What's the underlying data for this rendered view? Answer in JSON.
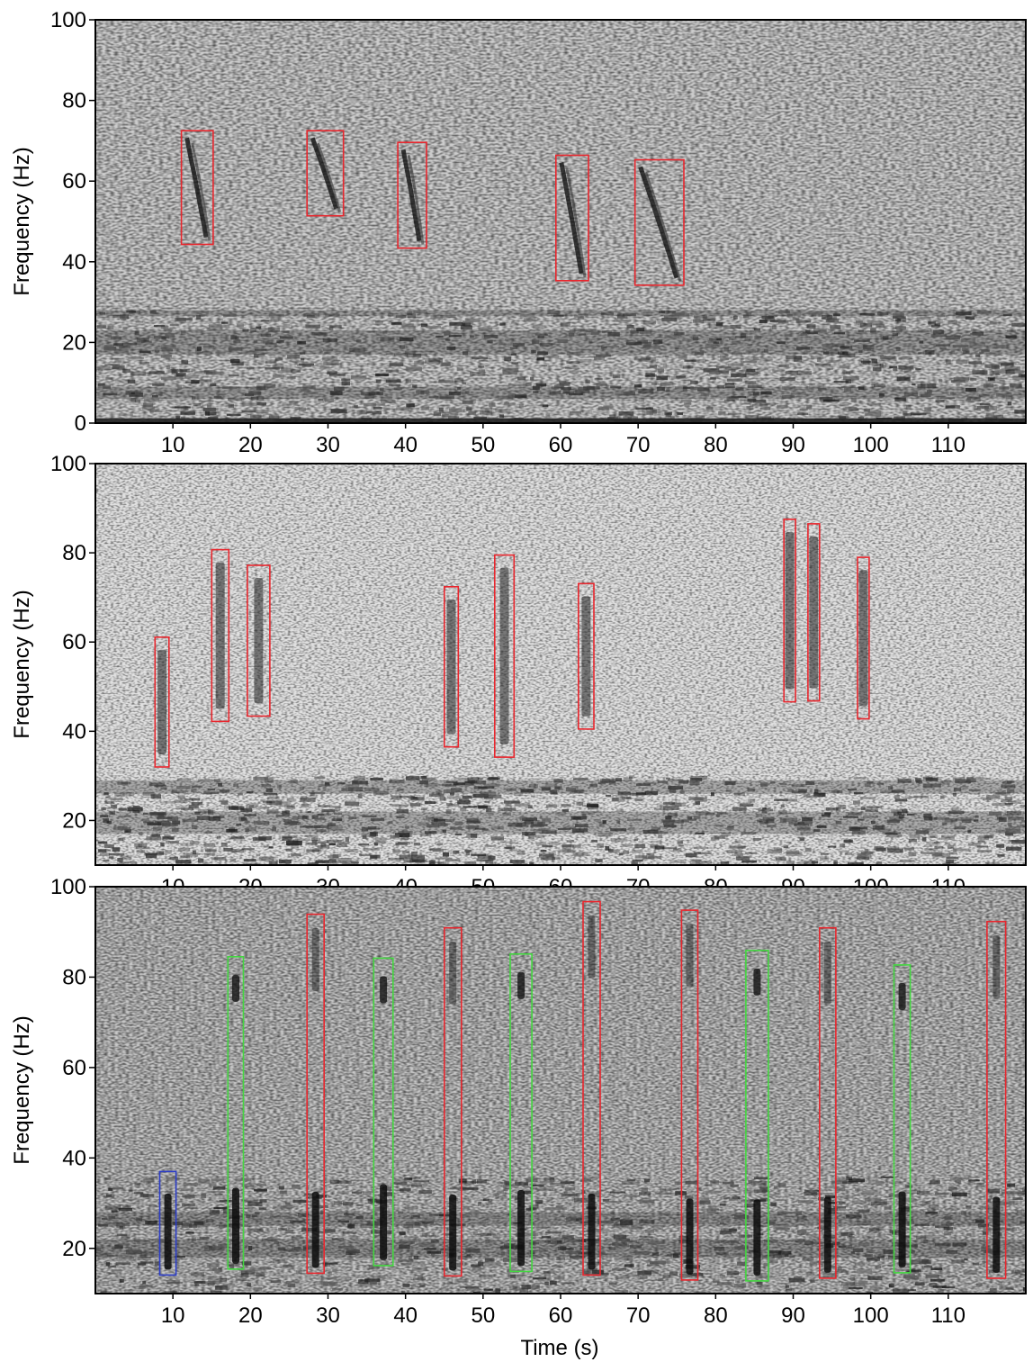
{
  "chart_data": [
    {
      "type": "heatmap",
      "panel": "top",
      "xlabel": "",
      "ylabel": "Frequency (Hz)",
      "xlim": [
        0,
        120
      ],
      "ylim": [
        0,
        100
      ],
      "xticks": [
        "10",
        "20",
        "30",
        "40",
        "50",
        "60",
        "70",
        "80",
        "90",
        "100",
        "110"
      ],
      "yticks": [
        "0",
        "20",
        "40",
        "60",
        "80",
        "100"
      ],
      "boxes": [
        {
          "color": "#e8262d",
          "t0": 11.1,
          "t1": 15.2,
          "f0": 44.3,
          "f1": 72.5
        },
        {
          "color": "#e8262d",
          "t0": 27.3,
          "t1": 32.0,
          "f0": 51.4,
          "f1": 72.5
        },
        {
          "color": "#e8262d",
          "t0": 39.0,
          "t1": 42.7,
          "f0": 43.4,
          "f1": 69.6
        },
        {
          "color": "#e8262d",
          "t0": 59.4,
          "t1": 63.6,
          "f0": 35.3,
          "f1": 66.4
        },
        {
          "color": "#e8262d",
          "t0": 69.6,
          "t1": 75.9,
          "f0": 34.2,
          "f1": 65.3
        }
      ]
    },
    {
      "type": "heatmap",
      "panel": "middle",
      "xlabel": "",
      "ylabel": "Frequency (Hz)",
      "xlim": [
        0,
        120
      ],
      "ylim": [
        10,
        100
      ],
      "xticks": [
        "10",
        "20",
        "30",
        "40",
        "50",
        "60",
        "70",
        "80",
        "90",
        "100",
        "110"
      ],
      "yticks": [
        "20",
        "40",
        "60",
        "80",
        "100"
      ],
      "boxes": [
        {
          "color": "#e8262d",
          "t0": 7.7,
          "t1": 9.5,
          "f0": 32.0,
          "f1": 61.1
        },
        {
          "color": "#e8262d",
          "t0": 15.0,
          "t1": 17.2,
          "f0": 42.2,
          "f1": 80.7
        },
        {
          "color": "#e8262d",
          "t0": 19.6,
          "t1": 22.5,
          "f0": 43.4,
          "f1": 77.2
        },
        {
          "color": "#e8262d",
          "t0": 45.0,
          "t1": 46.8,
          "f0": 36.5,
          "f1": 72.4
        },
        {
          "color": "#e8262d",
          "t0": 51.5,
          "t1": 54.0,
          "f0": 34.2,
          "f1": 79.5
        },
        {
          "color": "#e8262d",
          "t0": 62.3,
          "t1": 64.3,
          "f0": 40.5,
          "f1": 73.1
        },
        {
          "color": "#e8262d",
          "t0": 88.8,
          "t1": 90.3,
          "f0": 46.6,
          "f1": 87.5
        },
        {
          "color": "#e8262d",
          "t0": 91.9,
          "t1": 93.4,
          "f0": 46.8,
          "f1": 86.5
        },
        {
          "color": "#e8262d",
          "t0": 98.3,
          "t1": 99.8,
          "f0": 42.8,
          "f1": 79.0
        }
      ]
    },
    {
      "type": "heatmap",
      "panel": "bottom",
      "xlabel": "Time (s)",
      "ylabel": "Frequency (Hz)",
      "xlim": [
        0,
        120
      ],
      "ylim": [
        10,
        100
      ],
      "xticks": [
        "10",
        "20",
        "30",
        "40",
        "50",
        "60",
        "70",
        "80",
        "90",
        "100",
        "110"
      ],
      "yticks": [
        "20",
        "40",
        "60",
        "80",
        "100"
      ],
      "boxes": [
        {
          "color": "#2b3cc7",
          "t0": 8.3,
          "t1": 10.4,
          "f0": 14.1,
          "f1": 37.0
        },
        {
          "color": "#43d640",
          "t0": 17.1,
          "t1": 19.1,
          "f0": 15.4,
          "f1": 84.5
        },
        {
          "color": "#e8262d",
          "t0": 27.3,
          "t1": 29.5,
          "f0": 14.5,
          "f1": 93.9
        },
        {
          "color": "#43d640",
          "t0": 35.9,
          "t1": 38.4,
          "f0": 16.2,
          "f1": 84.2
        },
        {
          "color": "#e8262d",
          "t0": 45.0,
          "t1": 47.2,
          "f0": 13.9,
          "f1": 90.9
        },
        {
          "color": "#43d640",
          "t0": 53.5,
          "t1": 56.3,
          "f0": 14.9,
          "f1": 85.1
        },
        {
          "color": "#e8262d",
          "t0": 62.9,
          "t1": 65.1,
          "f0": 14.1,
          "f1": 96.7
        },
        {
          "color": "#e8262d",
          "t0": 75.6,
          "t1": 77.7,
          "f0": 13.0,
          "f1": 94.8
        },
        {
          "color": "#43d640",
          "t0": 83.9,
          "t1": 86.8,
          "f0": 12.8,
          "f1": 85.9
        },
        {
          "color": "#e8262d",
          "t0": 93.4,
          "t1": 95.5,
          "f0": 13.4,
          "f1": 90.9
        },
        {
          "color": "#43d640",
          "t0": 103.0,
          "t1": 105.1,
          "f0": 14.6,
          "f1": 82.7
        },
        {
          "color": "#e8262d",
          "t0": 115.0,
          "t1": 117.4,
          "f0": 13.4,
          "f1": 92.3
        }
      ]
    }
  ]
}
